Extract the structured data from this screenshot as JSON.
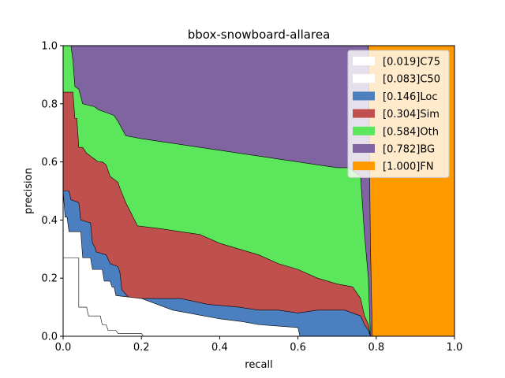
{
  "chart_data": {
    "type": "area",
    "title": "bbox-snowboard-allarea",
    "xlabel": "recall",
    "ylabel": "precision",
    "xlim": [
      0,
      1
    ],
    "ylim": [
      0,
      1
    ],
    "xticks": [
      "0.0",
      "0.2",
      "0.4",
      "0.6",
      "0.8",
      "1.0"
    ],
    "yticks": [
      "0.0",
      "0.2",
      "0.4",
      "0.6",
      "0.8",
      "1.0"
    ],
    "grid": false,
    "legend_position": "top-right",
    "series": [
      {
        "name": "[0.019]C75",
        "color": "#ffffff",
        "points": [
          [
            0,
            0.27
          ],
          [
            0.04,
            0.27
          ],
          [
            0.04,
            0.1
          ],
          [
            0.06,
            0.1
          ],
          [
            0.065,
            0.07
          ],
          [
            0.095,
            0.07
          ],
          [
            0.1,
            0.04
          ],
          [
            0.11,
            0.04
          ],
          [
            0.115,
            0.02
          ],
          [
            0.135,
            0.02
          ],
          [
            0.14,
            0.01
          ],
          [
            0.2,
            0.01
          ],
          [
            0.205,
            0
          ],
          [
            1,
            0
          ]
        ]
      },
      {
        "name": "[0.083]C50",
        "color": "#ffffff",
        "points": [
          [
            0,
            0.5
          ],
          [
            0.005,
            0.41
          ],
          [
            0.01,
            0.41
          ],
          [
            0.015,
            0.36
          ],
          [
            0.045,
            0.36
          ],
          [
            0.05,
            0.27
          ],
          [
            0.07,
            0.27
          ],
          [
            0.075,
            0.23
          ],
          [
            0.1,
            0.23
          ],
          [
            0.105,
            0.19
          ],
          [
            0.12,
            0.19
          ],
          [
            0.125,
            0.17
          ],
          [
            0.13,
            0.17
          ],
          [
            0.135,
            0.14
          ],
          [
            0.2,
            0.13
          ],
          [
            0.28,
            0.09
          ],
          [
            0.32,
            0.08
          ],
          [
            0.4,
            0.06
          ],
          [
            0.46,
            0.05
          ],
          [
            0.5,
            0.04
          ],
          [
            0.55,
            0.035
          ],
          [
            0.6,
            0.03
          ],
          [
            0.605,
            0
          ],
          [
            1,
            0
          ]
        ]
      },
      {
        "name": "[0.146]Loc",
        "color": "#4c7fc0",
        "points": [
          [
            0,
            0.5
          ],
          [
            0.015,
            0.5
          ],
          [
            0.02,
            0.47
          ],
          [
            0.04,
            0.46
          ],
          [
            0.045,
            0.4
          ],
          [
            0.07,
            0.39
          ],
          [
            0.075,
            0.32
          ],
          [
            0.08,
            0.31
          ],
          [
            0.085,
            0.29
          ],
          [
            0.11,
            0.28
          ],
          [
            0.12,
            0.25
          ],
          [
            0.14,
            0.24
          ],
          [
            0.145,
            0.22
          ],
          [
            0.15,
            0.16
          ],
          [
            0.17,
            0.13
          ],
          [
            0.3,
            0.13
          ],
          [
            0.37,
            0.11
          ],
          [
            0.45,
            0.1
          ],
          [
            0.5,
            0.09
          ],
          [
            0.55,
            0.09
          ],
          [
            0.6,
            0.08
          ],
          [
            0.65,
            0.09
          ],
          [
            0.72,
            0.09
          ],
          [
            0.76,
            0.07
          ],
          [
            0.77,
            0.04
          ],
          [
            0.78,
            0.02
          ],
          [
            0.785,
            0
          ],
          [
            1,
            0
          ]
        ]
      },
      {
        "name": "[0.304]Sim",
        "color": "#c0504d",
        "points": [
          [
            0,
            0.84
          ],
          [
            0.025,
            0.84
          ],
          [
            0.03,
            0.75
          ],
          [
            0.035,
            0.75
          ],
          [
            0.04,
            0.65
          ],
          [
            0.05,
            0.65
          ],
          [
            0.06,
            0.63
          ],
          [
            0.07,
            0.62
          ],
          [
            0.08,
            0.61
          ],
          [
            0.09,
            0.6
          ],
          [
            0.1,
            0.6
          ],
          [
            0.11,
            0.59
          ],
          [
            0.12,
            0.55
          ],
          [
            0.14,
            0.53
          ],
          [
            0.145,
            0.51
          ],
          [
            0.16,
            0.46
          ],
          [
            0.19,
            0.38
          ],
          [
            0.25,
            0.37
          ],
          [
            0.3,
            0.36
          ],
          [
            0.35,
            0.35
          ],
          [
            0.4,
            0.32
          ],
          [
            0.45,
            0.3
          ],
          [
            0.5,
            0.28
          ],
          [
            0.55,
            0.25
          ],
          [
            0.6,
            0.23
          ],
          [
            0.65,
            0.2
          ],
          [
            0.7,
            0.18
          ],
          [
            0.74,
            0.17
          ],
          [
            0.76,
            0.13
          ],
          [
            0.77,
            0.07
          ],
          [
            0.78,
            0.04
          ],
          [
            0.785,
            0
          ],
          [
            1,
            0
          ]
        ]
      },
      {
        "name": "[0.584]Oth",
        "color": "#5ce65c",
        "points": [
          [
            0,
            1.0
          ],
          [
            0.02,
            1.0
          ],
          [
            0.025,
            0.95
          ],
          [
            0.03,
            0.86
          ],
          [
            0.04,
            0.85
          ],
          [
            0.05,
            0.8
          ],
          [
            0.08,
            0.79
          ],
          [
            0.09,
            0.78
          ],
          [
            0.11,
            0.77
          ],
          [
            0.13,
            0.76
          ],
          [
            0.14,
            0.74
          ],
          [
            0.16,
            0.69
          ],
          [
            0.2,
            0.68
          ],
          [
            0.25,
            0.67
          ],
          [
            0.3,
            0.66
          ],
          [
            0.35,
            0.65
          ],
          [
            0.4,
            0.64
          ],
          [
            0.45,
            0.63
          ],
          [
            0.5,
            0.62
          ],
          [
            0.55,
            0.61
          ],
          [
            0.6,
            0.6
          ],
          [
            0.65,
            0.59
          ],
          [
            0.7,
            0.58
          ],
          [
            0.73,
            0.58
          ],
          [
            0.76,
            0.55
          ],
          [
            0.77,
            0.35
          ],
          [
            0.78,
            0.2
          ],
          [
            0.785,
            0
          ],
          [
            1,
            0
          ]
        ]
      },
      {
        "name": "[0.782]BG",
        "color": "#8064a2",
        "points": [
          [
            0,
            1.0
          ],
          [
            0.78,
            1.0
          ],
          [
            0.785,
            0.33
          ],
          [
            0.79,
            0
          ],
          [
            1,
            0
          ]
        ]
      },
      {
        "name": "[1.000]FN",
        "color": "#ff9900",
        "points": [
          [
            0,
            1.0
          ],
          [
            1.0,
            1.0
          ],
          [
            1.0,
            0
          ]
        ]
      }
    ]
  }
}
